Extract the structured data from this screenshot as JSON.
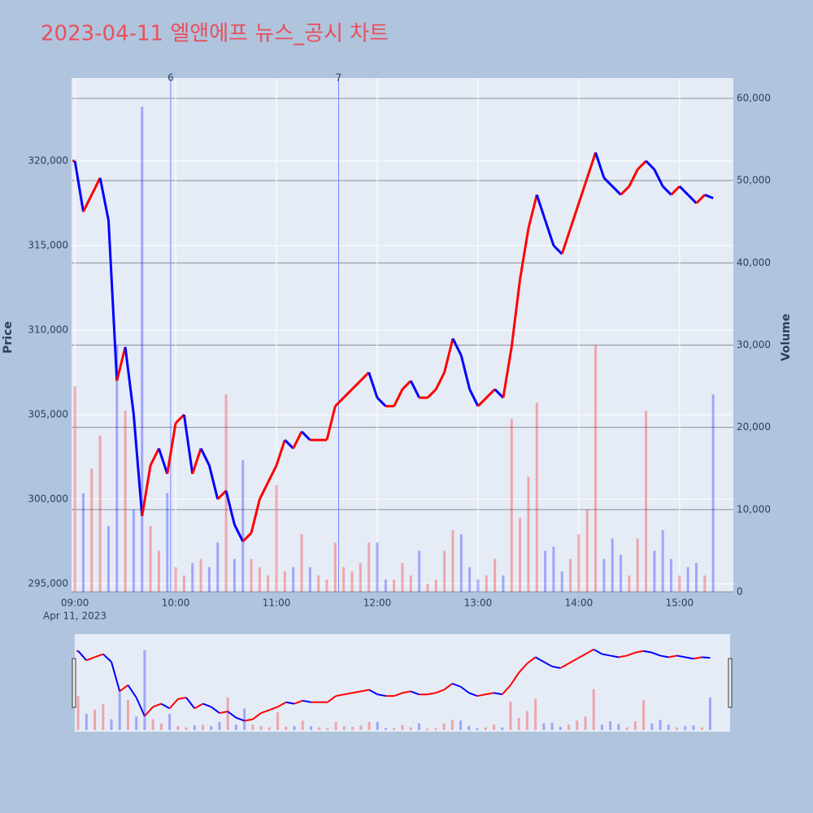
{
  "chart_data": {
    "type": "line",
    "title": "2023-04-11 엘앤에프 뉴스_공시 차트",
    "ylabel": "Price",
    "y2label": "Volume",
    "x_date_label": "Apr 11, 2023",
    "x": [
      "09:00",
      "09:05",
      "09:10",
      "09:15",
      "09:20",
      "09:25",
      "09:30",
      "09:35",
      "09:40",
      "09:45",
      "09:50",
      "09:55",
      "10:00",
      "10:05",
      "10:10",
      "10:15",
      "10:20",
      "10:25",
      "10:30",
      "10:35",
      "10:40",
      "10:45",
      "10:50",
      "10:55",
      "11:00",
      "11:05",
      "11:10",
      "11:15",
      "11:20",
      "11:25",
      "11:30",
      "11:35",
      "11:40",
      "11:45",
      "11:50",
      "11:55",
      "12:00",
      "12:05",
      "12:10",
      "12:15",
      "12:20",
      "12:25",
      "12:30",
      "12:35",
      "12:40",
      "12:45",
      "12:50",
      "12:55",
      "13:00",
      "13:05",
      "13:10",
      "13:15",
      "13:20",
      "13:25",
      "13:30",
      "13:35",
      "13:40",
      "13:45",
      "13:50",
      "13:55",
      "14:00",
      "14:05",
      "14:10",
      "14:15",
      "14:20",
      "14:25",
      "14:30",
      "14:35",
      "14:40",
      "14:45",
      "14:50",
      "14:55",
      "15:00",
      "15:05",
      "15:10",
      "15:15",
      "15:20"
    ],
    "close": [
      320000,
      317000,
      318000,
      319000,
      316500,
      307000,
      309000,
      305000,
      299000,
      302000,
      303000,
      301500,
      304500,
      305000,
      301500,
      303000,
      302000,
      300000,
      300500,
      298500,
      297500,
      298000,
      300000,
      301000,
      302000,
      303500,
      303000,
      304000,
      303500,
      303500,
      303500,
      305500,
      306000,
      306500,
      307000,
      307500,
      306000,
      305500,
      305500,
      306500,
      307000,
      306000,
      306000,
      306500,
      307500,
      309500,
      308500,
      306500,
      305500,
      306000,
      306500,
      306000,
      309000,
      313000,
      316000,
      318000,
      316500,
      315000,
      314500,
      316000,
      317500,
      319000,
      320500,
      319000,
      318500,
      318000,
      318500,
      319500,
      320000,
      319500,
      318500,
      318000,
      318500,
      318000,
      317500,
      318000,
      317800
    ],
    "volume": [
      25000,
      12000,
      15000,
      19000,
      8000,
      30000,
      22000,
      10000,
      59000,
      8000,
      5000,
      12000,
      3000,
      2000,
      3500,
      4000,
      3000,
      6000,
      24000,
      4000,
      16000,
      4000,
      3000,
      2000,
      13000,
      2500,
      3000,
      7000,
      3000,
      2000,
      1500,
      6000,
      3000,
      2500,
      3500,
      6000,
      6000,
      1500,
      1500,
      3500,
      2000,
      5000,
      1000,
      1500,
      5000,
      7500,
      7000,
      3000,
      1500,
      2000,
      4000,
      2000,
      21000,
      9000,
      14000,
      23000,
      5000,
      5500,
      2500,
      4000,
      7000,
      10000,
      30000,
      4000,
      6500,
      4500,
      2000,
      6500,
      22000,
      5000,
      7500,
      4000,
      2000,
      3000,
      3500,
      2000,
      24000
    ],
    "up_color": "#ff0000",
    "down_color": "#0000ff",
    "xlim": [
      "08:58",
      "15:32"
    ],
    "xticks": [
      "09:00",
      "10:00",
      "11:00",
      "12:00",
      "13:00",
      "14:00",
      "15:00"
    ],
    "ylim": [
      294519,
      324904
    ],
    "yticks": [
      {
        "value": 295000,
        "label": "295,000"
      },
      {
        "value": 300000,
        "label": "300,000"
      },
      {
        "value": 305000,
        "label": "305,000"
      },
      {
        "value": 310000,
        "label": "310,000"
      },
      {
        "value": 315000,
        "label": "315,000"
      },
      {
        "value": 320000,
        "label": "320,000"
      }
    ],
    "y2lim": [
      0,
      62470
    ],
    "y2ticks": [
      0,
      {
        "value": 10000,
        "label": "10,000"
      },
      {
        "value": 20000,
        "label": "20,000"
      },
      {
        "value": 30000,
        "label": "30,000"
      },
      {
        "value": 40000,
        "label": "40,000"
      },
      {
        "value": 50000,
        "label": "50,000"
      },
      {
        "value": 60000,
        "label": "60,000"
      }
    ],
    "events": [
      {
        "x": "09:57",
        "label": "6"
      },
      {
        "x": "11:37",
        "label": "7"
      }
    ],
    "grid": true
  }
}
